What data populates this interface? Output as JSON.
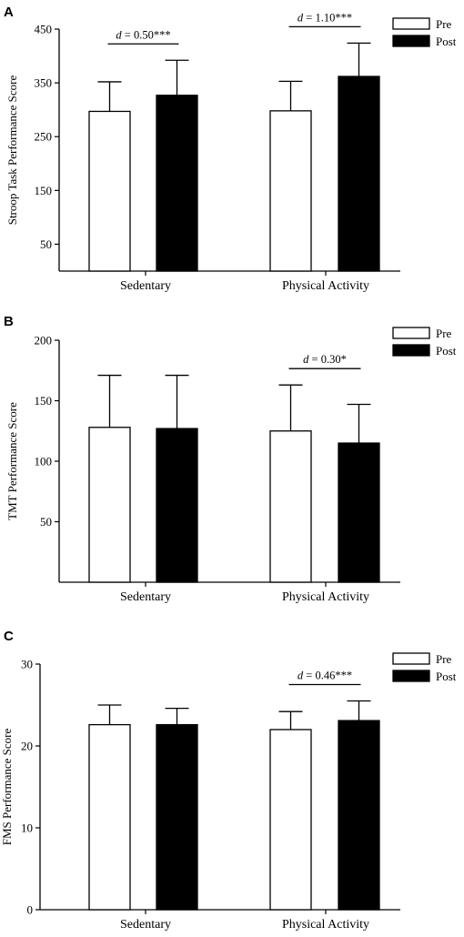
{
  "chart_data": [
    {
      "panel": "A",
      "type": "bar",
      "categories": [
        "Sedentary",
        "Physical Activity"
      ],
      "series": [
        {
          "name": "Pre",
          "color": "#ffffff",
          "values": [
            297,
            298
          ],
          "error": [
            55,
            55
          ]
        },
        {
          "name": "Post",
          "color": "#000000",
          "values": [
            327,
            362
          ],
          "error": [
            65,
            62
          ]
        }
      ],
      "ylabel": "Stroop Task Performance Score",
      "ylim": [
        0,
        450
      ],
      "yticks": [
        50,
        150,
        250,
        350,
        450
      ],
      "legend": "top-right",
      "annotations": [
        {
          "category": "Sedentary",
          "text_italic": "d",
          "text_rest": " = 0.50***"
        },
        {
          "category": "Physical Activity",
          "text_italic": "d",
          "text_rest": " = 1.10***"
        }
      ]
    },
    {
      "panel": "B",
      "type": "bar",
      "categories": [
        "Sedentary",
        "Physical Activity"
      ],
      "series": [
        {
          "name": "Pre",
          "color": "#ffffff",
          "values": [
            128,
            125
          ],
          "error": [
            43,
            38
          ]
        },
        {
          "name": "Post",
          "color": "#000000",
          "values": [
            127,
            115
          ],
          "error": [
            44,
            32
          ]
        }
      ],
      "ylabel": "TMT Performance Score",
      "ylim": [
        0,
        200
      ],
      "yticks": [
        50,
        100,
        150,
        200
      ],
      "legend": "top-right",
      "annotations": [
        {
          "category": "Physical Activity",
          "text_italic": "d",
          "text_rest": " = 0.30*"
        }
      ]
    },
    {
      "panel": "C",
      "type": "bar",
      "categories": [
        "Sedentary",
        "Physical Activity"
      ],
      "series": [
        {
          "name": "Pre",
          "color": "#ffffff",
          "values": [
            22.6,
            22.0
          ],
          "error": [
            2.4,
            2.2
          ]
        },
        {
          "name": "Post",
          "color": "#000000",
          "values": [
            22.6,
            23.1
          ],
          "error": [
            2.0,
            2.4
          ]
        }
      ],
      "ylabel": "FMS Performance Score",
      "ylim": [
        0,
        30
      ],
      "yticks": [
        0,
        10,
        20,
        30
      ],
      "legend": "top-right",
      "annotations": [
        {
          "category": "Physical Activity",
          "text_italic": "d",
          "text_rest": " = 0.46***"
        }
      ]
    }
  ]
}
